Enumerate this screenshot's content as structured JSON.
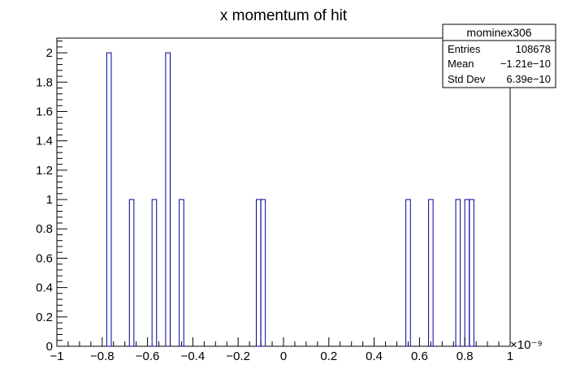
{
  "chart_data": {
    "type": "bar",
    "title": "x momentum of hit",
    "xlabel": "",
    "ylabel": "",
    "x_exponent_label": "×10⁻⁹",
    "xlim": [
      -1,
      1
    ],
    "ylim": [
      0,
      2.1
    ],
    "x_ticks": [
      -1,
      -0.8,
      -0.6,
      -0.4,
      -0.2,
      0,
      0.2,
      0.4,
      0.6,
      0.8,
      1
    ],
    "x_tick_labels": [
      "−1",
      "−0.8",
      "−0.6",
      "−0.4",
      "−0.2",
      "0",
      "0.2",
      "0.4",
      "0.6",
      "0.8",
      "1"
    ],
    "y_ticks": [
      0,
      0.2,
      0.4,
      0.6,
      0.8,
      1,
      1.2,
      1.4,
      1.6,
      1.8,
      2
    ],
    "y_tick_labels": [
      "0",
      "0.2",
      "0.4",
      "0.6",
      "0.8",
      "1",
      "1.2",
      "1.4",
      "1.6",
      "1.8",
      "2"
    ],
    "bin_width": 0.02,
    "bins": [
      {
        "x_low": -0.78,
        "value": 2
      },
      {
        "x_low": -0.68,
        "value": 1
      },
      {
        "x_low": -0.58,
        "value": 1
      },
      {
        "x_low": -0.52,
        "value": 2
      },
      {
        "x_low": -0.46,
        "value": 1
      },
      {
        "x_low": -0.12,
        "value": 1
      },
      {
        "x_low": -0.1,
        "value": 1
      },
      {
        "x_low": 0.54,
        "value": 1
      },
      {
        "x_low": 0.64,
        "value": 1
      },
      {
        "x_low": 0.76,
        "value": 1
      },
      {
        "x_low": 0.8,
        "value": 1
      },
      {
        "x_low": 0.82,
        "value": 1
      }
    ],
    "line_color": "#000099",
    "grid": false
  },
  "stats_box": {
    "name": "mominex306",
    "rows": [
      {
        "label": "Entries",
        "value": "108678"
      },
      {
        "label": "Mean",
        "value": "−1.21e−10"
      },
      {
        "label": "Std Dev",
        "value": "6.39e−10"
      }
    ]
  }
}
